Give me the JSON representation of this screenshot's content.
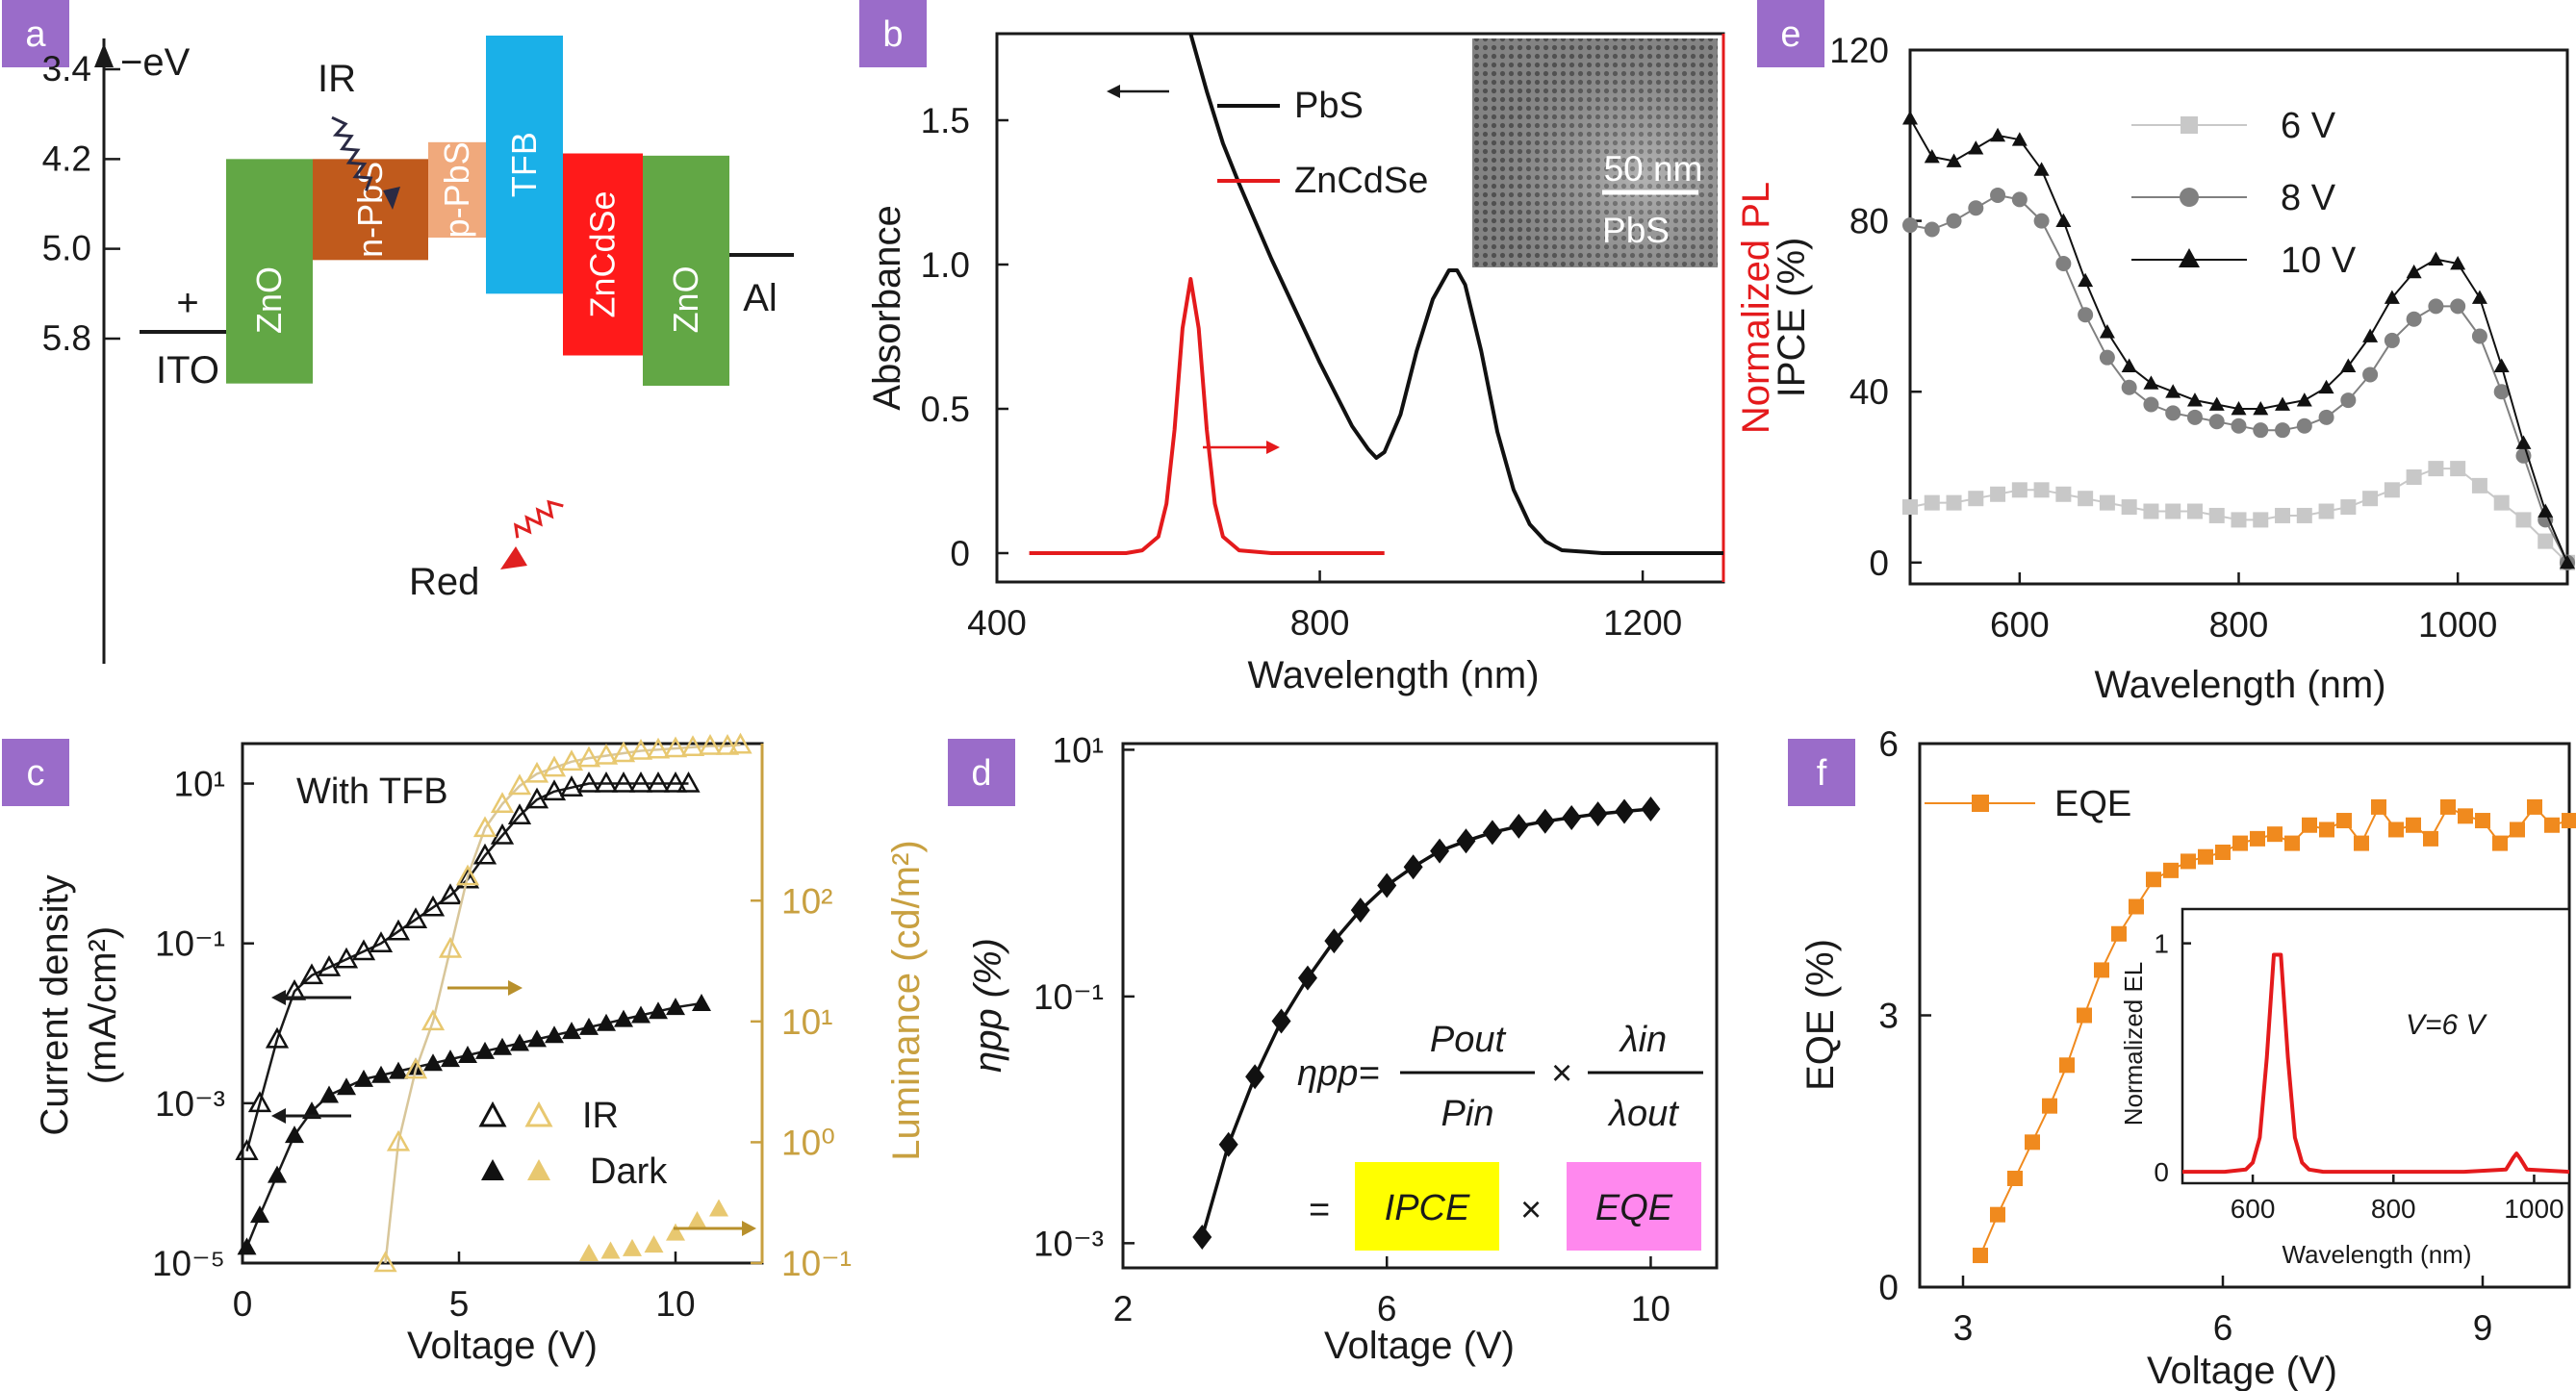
{
  "colors": {
    "badge": "#9a6cc9",
    "pbs_abs": "#111111",
    "znse_pl": "#e41a1c",
    "zno": "#62a745",
    "npbs": "#c05a1c",
    "ppbs": "#f0a97c",
    "tfb": "#1ab0e8",
    "zncdse": "#ff1a1a",
    "luminance": "#c8a040",
    "eqe": "#f08a1e",
    "ipce_6v": "#c8c8c8",
    "ipce_8v": "#808080",
    "ipce_10v": "#111111",
    "ipce_box": "#ffff00",
    "eqe_box": "#ff88ee"
  },
  "panel_a": {
    "badge": "a",
    "axis_title": "−eV",
    "ticks": [
      "3.4",
      "4.2",
      "5.0",
      "5.8"
    ],
    "plus_sign": "+",
    "ito_label": "ITO",
    "al_label": "Al",
    "ir_label": "IR",
    "red_label": "Red",
    "layers": [
      {
        "name": "ZnO",
        "top": 4.2,
        "bottom": 6.2,
        "color_key": "zno"
      },
      {
        "name": "n-PbS",
        "top": 4.2,
        "bottom": 5.1,
        "color_key": "npbs"
      },
      {
        "name": "p-PbS",
        "top": 4.05,
        "bottom": 4.9,
        "color_key": "ppbs"
      },
      {
        "name": "TFB",
        "top": 3.1,
        "bottom": 5.4,
        "color_key": "tfb"
      },
      {
        "name": "ZnCdSe",
        "top": 4.15,
        "bottom": 5.95,
        "color_key": "zncdse"
      },
      {
        "name": "ZnO",
        "top": 4.17,
        "bottom": 6.22,
        "color_key": "zno"
      }
    ]
  },
  "panel_b": {
    "badge": "b",
    "xlabel": "Wavelength (nm)",
    "ylabel_left": "Absorbance",
    "ylabel_right": "Normalized PL",
    "legend": [
      "PbS",
      "ZnCdSe"
    ],
    "inset_scale": "50 nm",
    "inset_label": "PbS"
  },
  "panel_c": {
    "badge": "c",
    "annotation": "With TFB",
    "xlabel": "Voltage (V)",
    "ylabel_left_line1": "Current density",
    "ylabel_left_line2": "(mA/cm²)",
    "ylabel_right": "Luminance (cd/m²)",
    "legend": [
      "IR",
      "Dark"
    ]
  },
  "panel_d": {
    "badge": "d",
    "xlabel": "Voltage (V)",
    "ylabel": "ηpp (%)",
    "eq_lhs": "ηpp=",
    "eq_num1": "Pout",
    "eq_den1": "Pin",
    "eq_times": "×",
    "eq_num2": "λin",
    "eq_den2": "λout",
    "eq_equals": "=",
    "eq_box1": "IPCE",
    "eq_box2": "EQE"
  },
  "panel_e": {
    "badge": "e",
    "xlabel": "Wavelength (nm)",
    "ylabel": "IPCE (%)",
    "legend": [
      "6 V",
      "8 V",
      "10 V"
    ]
  },
  "panel_f": {
    "badge": "f",
    "xlabel": "Voltage (V)",
    "ylabel": "EQE (%)",
    "legend": [
      "EQE"
    ],
    "inset_xlabel": "Wavelength (nm)",
    "inset_ylabel": "Normalized EL",
    "inset_annotation": "V=6 V"
  },
  "chart_data": [
    {
      "panel": "b",
      "type": "line",
      "xlim": [
        400,
        1300
      ],
      "ylim": [
        -0.1,
        1.8
      ],
      "xticks": [
        "400",
        "800",
        "1200"
      ],
      "yticks": [
        "0",
        "0.5",
        "1.0",
        "1.5"
      ],
      "series": [
        {
          "name": "PbS",
          "color_key": "pbs_abs",
          "x": [
            640,
            660,
            680,
            700,
            720,
            740,
            760,
            780,
            800,
            820,
            840,
            860,
            870,
            880,
            900,
            920,
            940,
            960,
            970,
            980,
            1000,
            1020,
            1040,
            1060,
            1080,
            1100,
            1150,
            1200,
            1250,
            1300
          ],
          "y": [
            1.8,
            1.6,
            1.42,
            1.28,
            1.15,
            1.02,
            0.9,
            0.78,
            0.66,
            0.55,
            0.44,
            0.36,
            0.33,
            0.35,
            0.48,
            0.7,
            0.88,
            0.98,
            0.98,
            0.93,
            0.7,
            0.42,
            0.22,
            0.1,
            0.04,
            0.01,
            0.0,
            0.0,
            0.0,
            0.0
          ]
        },
        {
          "name": "ZnCdSe",
          "color_key": "znse_pl",
          "x": [
            440,
            500,
            560,
            580,
            600,
            610,
            620,
            630,
            640,
            650,
            660,
            670,
            680,
            700,
            740,
            800,
            860,
            880
          ],
          "y": [
            0.0,
            0.0,
            0.0,
            0.01,
            0.06,
            0.18,
            0.45,
            0.82,
            1.0,
            0.82,
            0.45,
            0.18,
            0.06,
            0.01,
            0.0,
            0.0,
            0.0,
            0.0
          ]
        }
      ]
    },
    {
      "panel": "c",
      "type": "scatter",
      "xlim": [
        0,
        12
      ],
      "ylim_log": [
        -5,
        1.5
      ],
      "y2lim_log": [
        -1,
        3.3
      ],
      "xticks": [
        "0",
        "5",
        "10"
      ],
      "yticks": [
        "10⁻⁵",
        "10⁻³",
        "10⁻¹",
        "10¹"
      ],
      "y2ticks": [
        "10⁻¹",
        "10⁰",
        "10¹",
        "10²"
      ],
      "series": [
        {
          "name": "IR current",
          "marker": "open-triangle",
          "color_key": "pbs_abs",
          "x": [
            0.1,
            0.4,
            0.8,
            1.2,
            1.6,
            2.0,
            2.4,
            2.8,
            3.2,
            3.6,
            4.0,
            4.4,
            4.8,
            5.2,
            5.6,
            6.0,
            6.4,
            6.8,
            7.2,
            7.6,
            8.0,
            8.4,
            8.8,
            9.2,
            9.6,
            10.0,
            10.3
          ],
          "y": [
            -3.6,
            -3.0,
            -2.2,
            -1.6,
            -1.4,
            -1.3,
            -1.2,
            -1.1,
            -1.0,
            -0.85,
            -0.7,
            -0.55,
            -0.4,
            -0.2,
            0.1,
            0.35,
            0.6,
            0.8,
            0.9,
            0.95,
            1.0,
            1.0,
            1.0,
            1.0,
            1.0,
            1.0,
            1.0
          ]
        },
        {
          "name": "Dark current",
          "marker": "filled-triangle",
          "color_key": "pbs_abs",
          "x": [
            0.1,
            0.4,
            0.8,
            1.2,
            1.6,
            2.0,
            2.4,
            2.8,
            3.2,
            3.6,
            4.0,
            4.4,
            4.8,
            5.2,
            5.6,
            6.0,
            6.4,
            6.8,
            7.2,
            7.6,
            8.0,
            8.4,
            8.8,
            9.2,
            9.6,
            10.0,
            10.6
          ],
          "y": [
            -4.8,
            -4.4,
            -3.9,
            -3.4,
            -3.1,
            -2.9,
            -2.8,
            -2.7,
            -2.65,
            -2.6,
            -2.55,
            -2.5,
            -2.45,
            -2.4,
            -2.35,
            -2.3,
            -2.25,
            -2.2,
            -2.15,
            -2.1,
            -2.05,
            -2.0,
            -1.95,
            -1.9,
            -1.85,
            -1.8,
            -1.75
          ]
        },
        {
          "name": "IR luminance",
          "marker": "open-triangle",
          "color_key": "luminance",
          "x": [
            3.3,
            3.6,
            4.0,
            4.4,
            4.8,
            5.2,
            5.6,
            6.0,
            6.4,
            6.8,
            7.2,
            7.6,
            8.0,
            8.4,
            8.8,
            9.2,
            9.6,
            10.0,
            10.4,
            10.8,
            11.2,
            11.5
          ],
          "y2": [
            -1.0,
            0.0,
            0.6,
            1.0,
            1.6,
            2.2,
            2.6,
            2.8,
            2.95,
            3.05,
            3.1,
            3.15,
            3.18,
            3.2,
            3.22,
            3.24,
            3.25,
            3.26,
            3.27,
            3.28,
            3.28,
            3.29
          ]
        },
        {
          "name": "Dark luminance",
          "marker": "filled-triangle",
          "color_key": "luminance",
          "x": [
            8.0,
            8.5,
            9.0,
            9.5,
            10.0,
            10.5,
            11.0
          ],
          "y2": [
            -0.92,
            -0.9,
            -0.88,
            -0.85,
            -0.75,
            -0.65,
            -0.55
          ]
        }
      ]
    },
    {
      "panel": "d",
      "type": "line",
      "xlim": [
        2,
        11
      ],
      "ylim_log": [
        -3.2,
        1.05
      ],
      "xticks": [
        "2",
        "6",
        "10"
      ],
      "yticks": [
        "10⁻³",
        "10⁻¹",
        "10¹"
      ],
      "series": [
        {
          "name": "ηpp",
          "marker": "diamond",
          "color_key": "pbs_abs",
          "x": [
            3.2,
            3.6,
            4.0,
            4.4,
            4.8,
            5.2,
            5.6,
            6.0,
            6.4,
            6.8,
            7.2,
            7.6,
            8.0,
            8.4,
            8.8,
            9.2,
            9.6,
            10.0
          ],
          "y": [
            -2.95,
            -2.2,
            -1.65,
            -1.2,
            -0.85,
            -0.55,
            -0.3,
            -0.1,
            0.05,
            0.18,
            0.26,
            0.33,
            0.38,
            0.42,
            0.45,
            0.48,
            0.5,
            0.52
          ]
        }
      ]
    },
    {
      "panel": "e",
      "type": "line",
      "xlim": [
        500,
        1100
      ],
      "ylim": [
        -5,
        120
      ],
      "xticks": [
        "600",
        "800",
        "1000"
      ],
      "yticks": [
        "0",
        "40",
        "80",
        "120"
      ],
      "series": [
        {
          "name": "6 V",
          "marker": "square",
          "color_key": "ipce_6v",
          "x": [
            500,
            520,
            540,
            560,
            580,
            600,
            620,
            640,
            660,
            680,
            700,
            720,
            740,
            760,
            780,
            800,
            820,
            840,
            860,
            880,
            900,
            920,
            940,
            960,
            980,
            1000,
            1020,
            1040,
            1060,
            1080,
            1100
          ],
          "y": [
            13,
            14,
            14,
            15,
            16,
            17,
            17,
            16,
            15,
            14,
            13,
            12,
            12,
            12,
            11,
            10,
            10,
            11,
            11,
            12,
            13,
            15,
            17,
            20,
            22,
            22,
            18,
            14,
            10,
            5,
            0
          ]
        },
        {
          "name": "8 V",
          "marker": "circle",
          "color_key": "ipce_8v",
          "x": [
            500,
            520,
            540,
            560,
            580,
            600,
            620,
            640,
            660,
            680,
            700,
            720,
            740,
            760,
            780,
            800,
            820,
            840,
            860,
            880,
            900,
            920,
            940,
            960,
            980,
            1000,
            1020,
            1040,
            1060,
            1080,
            1100
          ],
          "y": [
            79,
            78,
            80,
            83,
            86,
            85,
            80,
            70,
            58,
            48,
            41,
            37,
            35,
            34,
            33,
            32,
            31,
            31,
            32,
            34,
            38,
            44,
            52,
            57,
            60,
            60,
            53,
            40,
            25,
            10,
            0
          ]
        },
        {
          "name": "10 V",
          "marker": "triangle",
          "color_key": "ipce_10v",
          "x": [
            500,
            520,
            540,
            560,
            580,
            600,
            620,
            640,
            660,
            680,
            700,
            720,
            740,
            760,
            780,
            800,
            820,
            840,
            860,
            880,
            900,
            920,
            940,
            960,
            980,
            1000,
            1020,
            1040,
            1060,
            1080,
            1100
          ],
          "y": [
            104,
            95,
            94,
            97,
            100,
            99,
            92,
            80,
            66,
            54,
            46,
            42,
            40,
            38,
            37,
            36,
            36,
            37,
            38,
            41,
            46,
            53,
            62,
            68,
            71,
            70,
            62,
            46,
            28,
            12,
            0
          ]
        }
      ]
    },
    {
      "panel": "f",
      "type": "line",
      "xlim": [
        2.5,
        10.0
      ],
      "ylim": [
        0,
        6
      ],
      "xticks": [
        "3",
        "6",
        "9"
      ],
      "yticks": [
        "0",
        "3",
        "6"
      ],
      "series": [
        {
          "name": "EQE",
          "marker": "square",
          "color_key": "eqe",
          "x": [
            3.2,
            3.4,
            3.6,
            3.8,
            4.0,
            4.2,
            4.4,
            4.6,
            4.8,
            5.0,
            5.2,
            5.4,
            5.6,
            5.8,
            6.0,
            6.2,
            6.4,
            6.6,
            6.8,
            7.0,
            7.2,
            7.4,
            7.6,
            7.8,
            8.0,
            8.2,
            8.4,
            8.6,
            8.8,
            9.0,
            9.2,
            9.4,
            9.6,
            9.8,
            10.0
          ],
          "y": [
            0.35,
            0.8,
            1.2,
            1.6,
            2.0,
            2.45,
            3.0,
            3.5,
            3.9,
            4.2,
            4.5,
            4.6,
            4.7,
            4.75,
            4.8,
            4.9,
            4.95,
            5.0,
            4.9,
            5.1,
            5.05,
            5.15,
            4.9,
            5.3,
            5.05,
            5.1,
            4.95,
            5.3,
            5.2,
            5.15,
            4.9,
            5.05,
            5.3,
            5.1,
            5.15
          ]
        },
        {
          "name": "Normalized EL",
          "inset": true,
          "color_key": "znse_pl",
          "xlim": [
            500,
            1050
          ],
          "ylim": [
            -0.05,
            1.15
          ],
          "xticks": [
            "600",
            "800",
            "1000"
          ],
          "yticks": [
            "0",
            "1"
          ],
          "x": [
            500,
            560,
            590,
            600,
            610,
            620,
            630,
            640,
            650,
            660,
            670,
            680,
            700,
            760,
            900,
            960,
            970,
            975,
            980,
            990,
            1050
          ],
          "y": [
            0,
            0,
            0.01,
            0.04,
            0.15,
            0.5,
            0.95,
            0.95,
            0.5,
            0.15,
            0.04,
            0.01,
            0,
            0,
            0,
            0.01,
            0.06,
            0.08,
            0.06,
            0.01,
            0
          ]
        }
      ]
    }
  ]
}
